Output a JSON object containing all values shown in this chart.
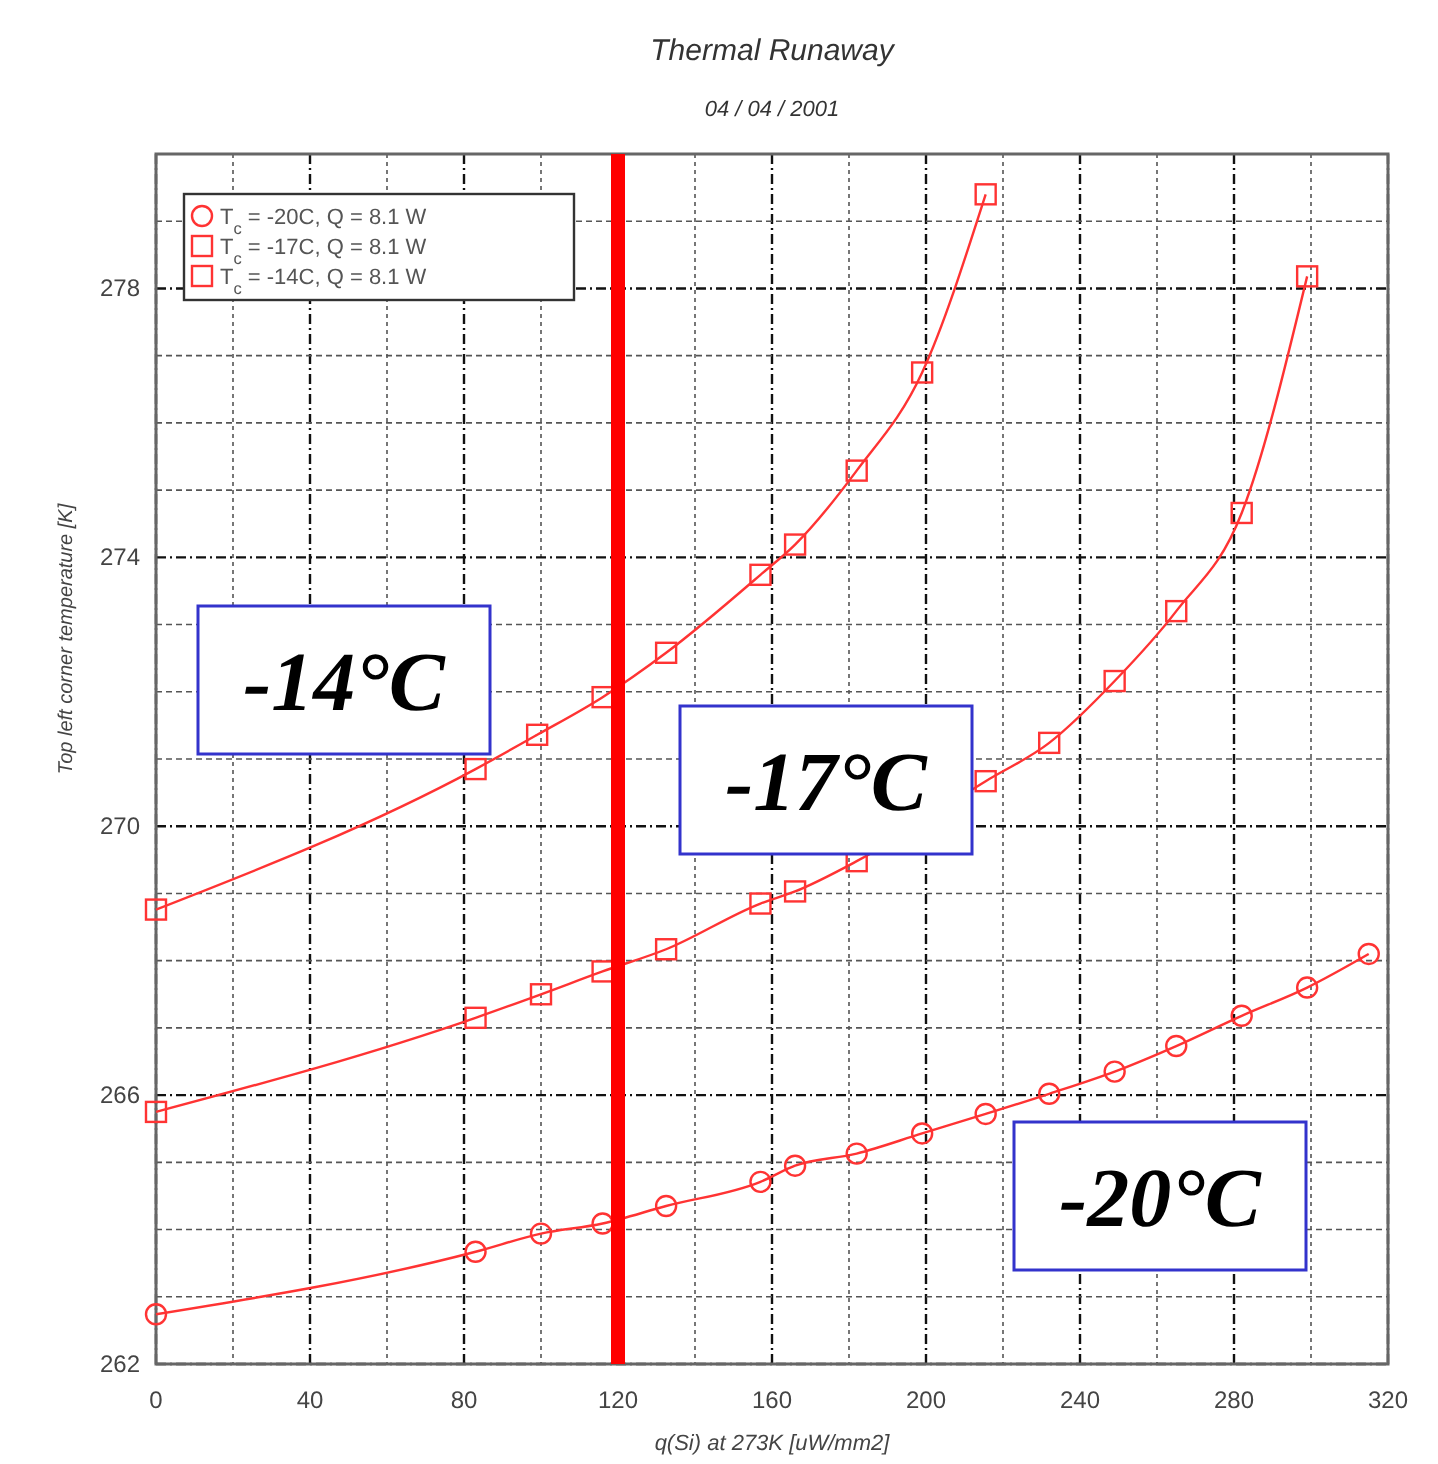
{
  "chart_data": {
    "type": "line",
    "title": "Thermal Runaway",
    "subtitle": "04 / 04 / 2001",
    "xlabel": "q(Si) at 273K [uW/mm2]",
    "ylabel": "Top left corner temperature [K]",
    "xlim": [
      0,
      320
    ],
    "ylim": [
      262,
      280
    ],
    "xticks": [
      0,
      {
        "value": 20,
        "label": null
      },
      40,
      {
        "value": 60,
        "label": null
      },
      80,
      {
        "value": 100,
        "label": null
      },
      120,
      {
        "value": 140,
        "label": null
      },
      160,
      {
        "value": 180,
        "label": null
      },
      200,
      {
        "value": 220,
        "label": null
      },
      240,
      {
        "value": 260,
        "label": null
      },
      280,
      {
        "value": 300,
        "label": null
      },
      320
    ],
    "yticks": [
      262,
      {
        "value": 263,
        "label": null
      },
      {
        "value": 264,
        "label": null
      },
      {
        "value": 265,
        "label": null
      },
      266,
      {
        "value": 267,
        "label": null
      },
      {
        "value": 268,
        "label": null
      },
      {
        "value": 269,
        "label": null
      },
      270,
      {
        "value": 271,
        "label": null
      },
      {
        "value": 272,
        "label": null
      },
      {
        "value": 273,
        "label": null
      },
      274,
      {
        "value": 275,
        "label": null
      },
      {
        "value": 276,
        "label": null
      },
      {
        "value": 277,
        "label": null
      },
      278,
      {
        "value": 279,
        "label": null
      },
      {
        "value": 280,
        "label": null
      }
    ],
    "grid": true,
    "legend": "top left",
    "series": [
      {
        "name": "T$_{c}$ = -20C,  Q = 8.1 W",
        "color": "#ff3333",
        "marker": "circle",
        "x": [
          0,
          83,
          100,
          116,
          132.5,
          157,
          166,
          182,
          199,
          215.5,
          232,
          249,
          265,
          282,
          299,
          315
        ],
        "values": [
          262.74,
          263.67,
          263.94,
          264.09,
          264.35,
          264.71,
          264.95,
          265.13,
          265.43,
          265.72,
          266.02,
          266.35,
          266.73,
          267.18,
          267.6,
          268.1
        ]
      },
      {
        "name": "T$_{c}$ = -17C,  Q = 8.1 W",
        "color": "#ff3333",
        "marker": "square",
        "x": [
          0,
          83,
          100,
          116,
          132.5,
          157,
          166,
          182,
          215.5,
          232,
          249,
          265,
          282,
          299
        ],
        "values": [
          265.75,
          267.15,
          267.5,
          267.84,
          268.17,
          268.85,
          269.03,
          269.48,
          270.67,
          271.24,
          272.16,
          273.2,
          274.66,
          278.18
        ]
      },
      {
        "name": "T$_{c}$ = -14C,  Q = 8.1 W",
        "color": "#ff3333",
        "marker": "square",
        "x": [
          0,
          83,
          99,
          116,
          132.5,
          157,
          166,
          182,
          199,
          215.5
        ],
        "values": [
          268.76,
          270.85,
          271.36,
          271.92,
          272.58,
          273.74,
          274.19,
          275.29,
          276.75,
          279.4
        ]
      }
    ],
    "ref_lines": [
      {
        "axis": "x",
        "value": 120,
        "color": "#ff0000"
      }
    ],
    "annotations": [
      "-14°C",
      "-17°C",
      "-20°C"
    ]
  }
}
